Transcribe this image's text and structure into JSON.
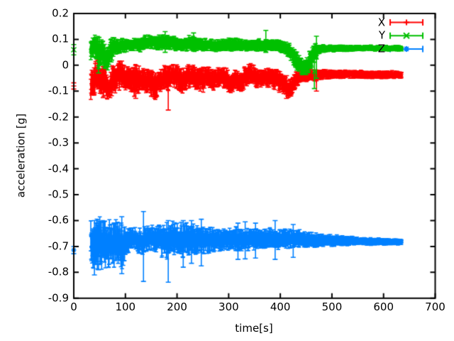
{
  "figure": {
    "background": "#ffffff",
    "border_color": "#000000",
    "text_color": "#000000"
  },
  "chart_data": {
    "type": "scatter",
    "style": "errorbars",
    "title": "",
    "xlabel": "time[s]",
    "ylabel": "acceleration [g]",
    "xlim": [
      0,
      700
    ],
    "ylim": [
      -0.9,
      0.2
    ],
    "grid": "off",
    "xticks": {
      "values": [
        0,
        100,
        200,
        300,
        400,
        500,
        600,
        700
      ],
      "labels": [
        "0",
        "100",
        "200",
        "300",
        "400",
        "500",
        "600",
        "700"
      ]
    },
    "yticks": {
      "values": [
        0.2,
        0.1,
        0,
        -0.1,
        -0.2,
        -0.3,
        -0.4,
        -0.5,
        -0.6,
        -0.7,
        -0.8,
        -0.9
      ],
      "labels": [
        "0.2",
        "0.1",
        "0",
        "-0.1",
        "-0.2",
        "-0.3",
        "-0.4",
        "-0.5",
        "-0.6",
        "-0.7",
        "-0.8",
        "-0.9"
      ]
    },
    "legend": {
      "position": "top-right"
    },
    "series": [
      {
        "name": "X",
        "color": "#ff0000",
        "marker": "plus",
        "seed": 101,
        "start_point": {
          "t": 0,
          "value": -0.08,
          "err": 0.012
        },
        "t_start": 33,
        "t_end": 635,
        "dt": 0.6,
        "envelope": [
          [
            33,
            -0.075,
            0.045
          ],
          [
            40,
            -0.05,
            0.05
          ],
          [
            47,
            -0.032,
            0.045
          ],
          [
            54,
            -0.07,
            0.042
          ],
          [
            60,
            -0.055,
            0.048
          ],
          [
            68,
            -0.095,
            0.03
          ],
          [
            75,
            -0.06,
            0.045
          ],
          [
            83,
            -0.04,
            0.042
          ],
          [
            90,
            -0.032,
            0.04
          ],
          [
            100,
            -0.05,
            0.038
          ],
          [
            110,
            -0.055,
            0.042
          ],
          [
            120,
            -0.06,
            0.045
          ],
          [
            130,
            -0.05,
            0.038
          ],
          [
            140,
            -0.06,
            0.04
          ],
          [
            150,
            -0.072,
            0.042
          ],
          [
            158,
            -0.08,
            0.038
          ],
          [
            166,
            -0.06,
            0.035
          ],
          [
            175,
            -0.048,
            0.035
          ],
          [
            183,
            -0.045,
            0.038
          ],
          [
            192,
            -0.035,
            0.032
          ],
          [
            200,
            -0.045,
            0.035
          ],
          [
            208,
            -0.06,
            0.038
          ],
          [
            216,
            -0.055,
            0.035
          ],
          [
            224,
            -0.042,
            0.032
          ],
          [
            233,
            -0.04,
            0.033
          ],
          [
            242,
            -0.05,
            0.035
          ],
          [
            252,
            -0.055,
            0.035
          ],
          [
            262,
            -0.048,
            0.03
          ],
          [
            272,
            -0.06,
            0.03
          ],
          [
            282,
            -0.045,
            0.028
          ],
          [
            295,
            -0.05,
            0.03
          ],
          [
            305,
            -0.075,
            0.028
          ],
          [
            313,
            -0.05,
            0.026
          ],
          [
            322,
            -0.075,
            0.03
          ],
          [
            332,
            -0.046,
            0.03
          ],
          [
            342,
            -0.03,
            0.03
          ],
          [
            355,
            -0.05,
            0.028
          ],
          [
            368,
            -0.045,
            0.026
          ],
          [
            380,
            -0.05,
            0.028
          ],
          [
            395,
            -0.055,
            0.03
          ],
          [
            408,
            -0.08,
            0.03
          ],
          [
            418,
            -0.092,
            0.028
          ],
          [
            428,
            -0.06,
            0.026
          ],
          [
            438,
            -0.044,
            0.02
          ],
          [
            452,
            -0.04,
            0.018
          ],
          [
            466,
            -0.038,
            0.016
          ],
          [
            480,
            -0.036,
            0.014
          ],
          [
            510,
            -0.035,
            0.012
          ],
          [
            545,
            -0.035,
            0.011
          ],
          [
            580,
            -0.036,
            0.011
          ],
          [
            610,
            -0.037,
            0.011
          ],
          [
            635,
            -0.037,
            0.011
          ]
        ],
        "outliers": [
          [
            57,
            -0.125,
            -0.005
          ],
          [
            120,
            -0.128,
            -0.02
          ],
          [
            158,
            -0.122,
            -0.03
          ],
          [
            183,
            -0.173,
            -0.022
          ],
          [
            412,
            -0.128,
            -0.04
          ],
          [
            470,
            -0.1,
            -0.02
          ]
        ]
      },
      {
        "name": "Y",
        "color": "#00c000",
        "marker": "cross",
        "seed": 202,
        "start_point": {
          "t": 0,
          "value": 0.06,
          "err": 0.02
        },
        "t_start": 33,
        "t_end": 635,
        "dt": 0.6,
        "envelope": [
          [
            33,
            0.07,
            0.035
          ],
          [
            40,
            0.078,
            0.03
          ],
          [
            48,
            0.05,
            0.042
          ],
          [
            56,
            0.04,
            0.045
          ],
          [
            63,
            0.03,
            0.038
          ],
          [
            70,
            0.048,
            0.04
          ],
          [
            78,
            0.068,
            0.026
          ],
          [
            88,
            0.075,
            0.02
          ],
          [
            100,
            0.078,
            0.018
          ],
          [
            115,
            0.08,
            0.018
          ],
          [
            130,
            0.082,
            0.02
          ],
          [
            145,
            0.09,
            0.02
          ],
          [
            158,
            0.086,
            0.02
          ],
          [
            170,
            0.088,
            0.022
          ],
          [
            180,
            0.09,
            0.022
          ],
          [
            192,
            0.084,
            0.02
          ],
          [
            205,
            0.079,
            0.018
          ],
          [
            218,
            0.082,
            0.02
          ],
          [
            230,
            0.085,
            0.022
          ],
          [
            245,
            0.08,
            0.018
          ],
          [
            260,
            0.078,
            0.016
          ],
          [
            278,
            0.076,
            0.016
          ],
          [
            295,
            0.078,
            0.017
          ],
          [
            312,
            0.08,
            0.02
          ],
          [
            328,
            0.075,
            0.016
          ],
          [
            345,
            0.077,
            0.016
          ],
          [
            362,
            0.079,
            0.017
          ],
          [
            378,
            0.078,
            0.016
          ],
          [
            392,
            0.077,
            0.016
          ],
          [
            405,
            0.072,
            0.018
          ],
          [
            415,
            0.06,
            0.02
          ],
          [
            425,
            0.035,
            0.026
          ],
          [
            435,
            0.01,
            0.026
          ],
          [
            445,
            -0.008,
            0.022
          ],
          [
            452,
            0,
            0.026
          ],
          [
            460,
            0.025,
            0.03
          ],
          [
            468,
            0.055,
            0.025
          ],
          [
            476,
            0.063,
            0.012
          ],
          [
            495,
            0.065,
            0.01
          ],
          [
            525,
            0.066,
            0.009
          ],
          [
            560,
            0.067,
            0.008
          ],
          [
            595,
            0.066,
            0.008
          ],
          [
            635,
            0.065,
            0.008
          ]
        ],
        "outliers": [
          [
            48,
            -0.03,
            0.015
          ],
          [
            177,
            0.05,
            0.13
          ],
          [
            232,
            0.055,
            0.125
          ],
          [
            372,
            0.05,
            0.135
          ],
          [
            466,
            -0.09,
            0.04
          ],
          [
            470,
            -0.05,
            0.112
          ]
        ]
      },
      {
        "name": "Z",
        "color": "#0080ff",
        "marker": "asterisk",
        "seed": 303,
        "start_point": {
          "t": 0,
          "value": -0.714,
          "err": 0.014
        },
        "t_start": 33,
        "t_end": 635,
        "dt": 0.6,
        "envelope": [
          [
            33,
            -0.69,
            0.065
          ],
          [
            42,
            -0.7,
            0.072
          ],
          [
            52,
            -0.685,
            0.07
          ],
          [
            62,
            -0.69,
            0.068
          ],
          [
            72,
            -0.685,
            0.065
          ],
          [
            82,
            -0.69,
            0.062
          ],
          [
            93,
            -0.7,
            0.062
          ],
          [
            103,
            -0.678,
            0.04
          ],
          [
            113,
            -0.67,
            0.032
          ],
          [
            123,
            -0.675,
            0.034
          ],
          [
            133,
            -0.68,
            0.038
          ],
          [
            143,
            -0.672,
            0.036
          ],
          [
            153,
            -0.67,
            0.036
          ],
          [
            163,
            -0.676,
            0.04
          ],
          [
            173,
            -0.68,
            0.044
          ],
          [
            183,
            -0.676,
            0.05
          ],
          [
            193,
            -0.67,
            0.046
          ],
          [
            203,
            -0.674,
            0.048
          ],
          [
            213,
            -0.676,
            0.05
          ],
          [
            223,
            -0.67,
            0.044
          ],
          [
            235,
            -0.674,
            0.04
          ],
          [
            247,
            -0.672,
            0.04
          ],
          [
            260,
            -0.674,
            0.036
          ],
          [
            273,
            -0.67,
            0.032
          ],
          [
            287,
            -0.672,
            0.03
          ],
          [
            300,
            -0.672,
            0.03
          ],
          [
            314,
            -0.675,
            0.034
          ],
          [
            328,
            -0.672,
            0.03
          ],
          [
            342,
            -0.674,
            0.03
          ],
          [
            356,
            -0.67,
            0.028
          ],
          [
            370,
            -0.672,
            0.03
          ],
          [
            384,
            -0.67,
            0.028
          ],
          [
            398,
            -0.673,
            0.028
          ],
          [
            412,
            -0.67,
            0.027
          ],
          [
            426,
            -0.673,
            0.028
          ],
          [
            440,
            -0.672,
            0.024
          ],
          [
            455,
            -0.673,
            0.022
          ],
          [
            470,
            -0.675,
            0.02
          ],
          [
            488,
            -0.676,
            0.017
          ],
          [
            506,
            -0.677,
            0.015
          ],
          [
            525,
            -0.678,
            0.013
          ],
          [
            545,
            -0.679,
            0.012
          ],
          [
            565,
            -0.68,
            0.011
          ],
          [
            590,
            -0.681,
            0.01
          ],
          [
            615,
            -0.682,
            0.009
          ],
          [
            635,
            -0.682,
            0.009
          ]
        ],
        "outliers": [
          [
            40,
            -0.81,
            -0.6
          ],
          [
            48,
            -0.79,
            -0.61
          ],
          [
            93,
            -0.805,
            -0.585
          ],
          [
            135,
            -0.835,
            -0.565
          ],
          [
            183,
            -0.838,
            -0.6
          ],
          [
            212,
            -0.78,
            -0.6
          ],
          [
            228,
            -0.765,
            -0.6
          ],
          [
            247,
            -0.775,
            -0.595
          ],
          [
            318,
            -0.75,
            -0.61
          ],
          [
            332,
            -0.748,
            -0.605
          ],
          [
            352,
            -0.745,
            -0.61
          ],
          [
            390,
            -0.75,
            -0.6
          ],
          [
            425,
            -0.742,
            -0.615
          ]
        ]
      }
    ]
  }
}
